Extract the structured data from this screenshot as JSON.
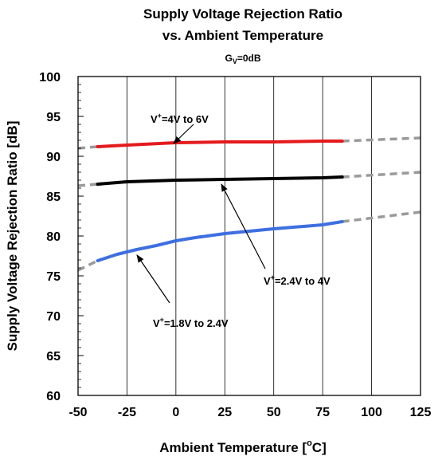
{
  "chart_data": {
    "type": "line",
    "title_line1": "Supply Voltage Rejection Ratio",
    "title_line2": "vs. Ambient Temperature",
    "condition": {
      "main": "G",
      "sub": "V",
      "rest": "=0dB"
    },
    "xlabel": {
      "text": "Ambient Temperature [",
      "sup": "o",
      "after": "C]"
    },
    "ylabel": "Supply Voltage Rejection Ratio [dB]",
    "xlim": [
      -50,
      125
    ],
    "ylim": [
      60,
      100
    ],
    "x_ticks": [
      -50,
      -25,
      0,
      25,
      50,
      75,
      100,
      125
    ],
    "y_ticks": [
      60,
      65,
      70,
      75,
      80,
      85,
      90,
      95,
      100
    ],
    "grid": "vertical",
    "series": [
      {
        "name": "V+=4V to 6V",
        "label": {
          "pre": "V",
          "sup": "+",
          "post": "=4V to 6V"
        },
        "color": "#e41a1c",
        "x": [
          -40,
          -25,
          0,
          25,
          50,
          75,
          85
        ],
        "y": [
          91.2,
          91.4,
          91.7,
          91.8,
          91.8,
          91.9,
          91.9
        ],
        "extrap_left": {
          "x": [
            -50,
            -40
          ],
          "y": [
            91.0,
            91.2
          ]
        },
        "extrap_right": {
          "x": [
            85,
            125
          ],
          "y": [
            91.9,
            92.3
          ]
        }
      },
      {
        "name": "V+=2.4V to 4V",
        "label": {
          "pre": "V",
          "sup": "+",
          "post": "=2.4V to 4V"
        },
        "color": "#000000",
        "x": [
          -40,
          -25,
          0,
          25,
          50,
          75,
          85
        ],
        "y": [
          86.5,
          86.8,
          87.0,
          87.1,
          87.2,
          87.3,
          87.4
        ],
        "extrap_left": {
          "x": [
            -50,
            -40
          ],
          "y": [
            86.3,
            86.5
          ]
        },
        "extrap_right": {
          "x": [
            85,
            125
          ],
          "y": [
            87.4,
            88.0
          ]
        }
      },
      {
        "name": "V+=1.8V to 2.4V",
        "label": {
          "pre": "V",
          "sup": "+",
          "post": "=1.8V to 2.4V"
        },
        "color": "#3d6fe0",
        "x": [
          -40,
          -30,
          -20,
          -10,
          0,
          10,
          25,
          50,
          75,
          85
        ],
        "y": [
          76.9,
          77.7,
          78.3,
          78.8,
          79.4,
          79.8,
          80.3,
          80.9,
          81.4,
          81.8
        ],
        "extrap_left": {
          "x": [
            -50,
            -40
          ],
          "y": [
            75.7,
            76.9
          ]
        },
        "extrap_right": {
          "x": [
            85,
            125
          ],
          "y": [
            81.8,
            83.0
          ]
        }
      }
    ]
  }
}
